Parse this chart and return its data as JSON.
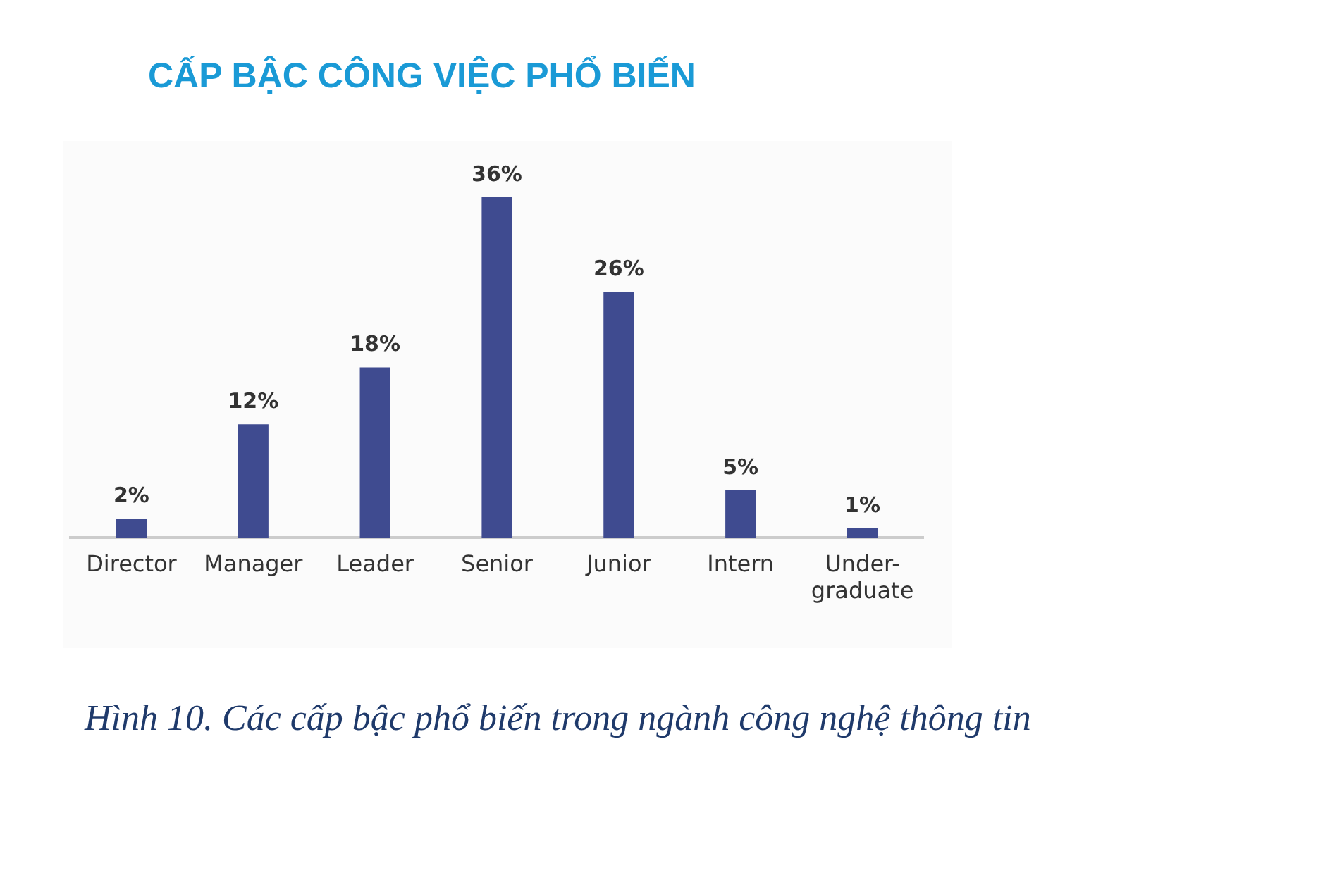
{
  "chart_data": {
    "type": "bar",
    "title": "CẤP BẬC CÔNG VIỆC PHỔ BIẾN",
    "categories": [
      "Director",
      "Manager",
      "Leader",
      "Senior",
      "Junior",
      "Intern",
      "Under-graduate"
    ],
    "values": [
      2,
      12,
      18,
      36,
      26,
      5,
      1
    ],
    "value_labels": [
      "2%",
      "12%",
      "18%",
      "36%",
      "26%",
      "5%",
      "1%"
    ],
    "color": "#3f4b90",
    "grid": false,
    "legend": false,
    "annotations": [
      "Hình 10. Các cấp bậc phổ biến trong ngành công nghệ thông tin"
    ]
  }
}
